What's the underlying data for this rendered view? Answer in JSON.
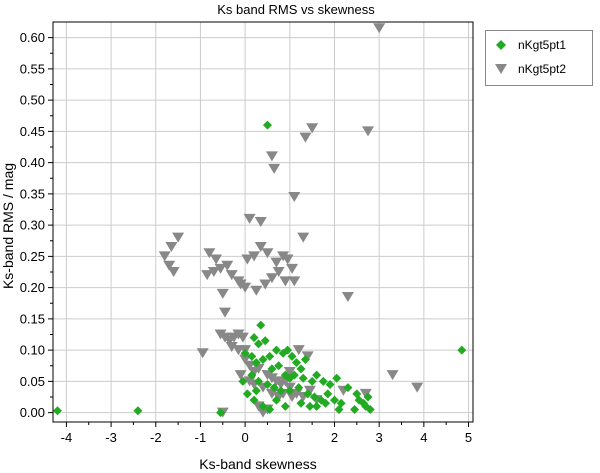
{
  "chart_data": {
    "type": "scatter",
    "title": "Ks band RMS vs skewness",
    "xlabel": "Ks-band skewness",
    "ylabel": "Ks-band RMS / mag",
    "xlim": [
      -4.3,
      5.1
    ],
    "ylim": [
      -0.015,
      0.625
    ],
    "xticks": [
      -4,
      -3,
      -2,
      -1,
      0,
      1,
      2,
      3,
      4,
      5
    ],
    "yticks": [
      0.0,
      0.05,
      0.1,
      0.15,
      0.2,
      0.25,
      0.3,
      0.35,
      0.4,
      0.45,
      0.5,
      0.55,
      0.6
    ],
    "ytick_labels": [
      "0.00",
      "0.05",
      "0.10",
      "0.15",
      "0.20",
      "0.25",
      "0.30",
      "0.35",
      "0.40",
      "0.45",
      "0.50",
      "0.55",
      "0.60"
    ],
    "grid": true,
    "legend": "outside-top-right",
    "series": [
      {
        "name": "nKgt5pt1",
        "marker": "diamond",
        "color": "#22aa22",
        "points": [
          [
            -4.2,
            0.003
          ],
          [
            -2.4,
            0.003
          ],
          [
            0.5,
            0.46
          ],
          [
            4.85,
            0.1
          ],
          [
            0.35,
            0.14
          ],
          [
            0.2,
            0.12
          ],
          [
            0.3,
            0.11
          ],
          [
            0.45,
            0.115
          ],
          [
            0.0,
            0.095
          ],
          [
            0.15,
            0.09
          ],
          [
            0.25,
            0.08
          ],
          [
            0.4,
            0.085
          ],
          [
            0.55,
            0.09
          ],
          [
            0.7,
            0.1
          ],
          [
            0.85,
            0.095
          ],
          [
            0.95,
            0.1
          ],
          [
            1.05,
            0.09
          ],
          [
            1.15,
            0.08
          ],
          [
            1.25,
            0.07
          ],
          [
            1.35,
            0.085
          ],
          [
            0.6,
            0.07
          ],
          [
            0.75,
            0.075
          ],
          [
            0.9,
            0.06
          ],
          [
            1.0,
            0.055
          ],
          [
            1.1,
            0.06
          ],
          [
            1.3,
            0.055
          ],
          [
            1.5,
            0.05
          ],
          [
            1.6,
            0.06
          ],
          [
            1.75,
            0.05
          ],
          [
            1.9,
            0.045
          ],
          [
            2.05,
            0.055
          ],
          [
            0.3,
            0.05
          ],
          [
            0.5,
            0.045
          ],
          [
            0.65,
            0.04
          ],
          [
            0.8,
            0.035
          ],
          [
            1.2,
            0.04
          ],
          [
            1.4,
            0.03
          ],
          [
            1.55,
            0.025
          ],
          [
            1.7,
            0.02
          ],
          [
            1.85,
            0.03
          ],
          [
            2.0,
            0.02
          ],
          [
            2.15,
            0.015
          ],
          [
            2.3,
            0.04
          ],
          [
            2.5,
            0.03
          ],
          [
            2.65,
            0.015
          ],
          [
            2.75,
            0.025
          ],
          [
            2.8,
            0.005
          ],
          [
            2.7,
            0.01
          ],
          [
            -0.05,
            0.05
          ],
          [
            0.05,
            0.03
          ],
          [
            0.2,
            0.02
          ],
          [
            0.4,
            0.01
          ],
          [
            0.55,
            0.005
          ],
          [
            0.7,
            0.02
          ],
          [
            1.6,
            0.01
          ],
          [
            2.1,
            0.005
          ],
          [
            2.45,
            0.005
          ],
          [
            2.55,
            0.02
          ],
          [
            1.25,
            0.015
          ],
          [
            1.45,
            0.01
          ],
          [
            0.9,
            0.01
          ],
          [
            -0.55,
            0.0
          ],
          [
            0.15,
            0.06
          ],
          [
            0.25,
            0.035
          ],
          [
            1.0,
            0.035
          ],
          [
            1.8,
            0.015
          ]
        ]
      },
      {
        "name": "nKgt5pt2",
        "marker": "triangle-down",
        "color": "#888888",
        "points": [
          [
            3.0,
            0.615
          ],
          [
            1.5,
            0.455
          ],
          [
            1.35,
            0.44
          ],
          [
            2.75,
            0.45
          ],
          [
            0.6,
            0.41
          ],
          [
            0.65,
            0.39
          ],
          [
            1.1,
            0.345
          ],
          [
            1.3,
            0.28
          ],
          [
            0.1,
            0.31
          ],
          [
            0.35,
            0.305
          ],
          [
            -1.5,
            0.28
          ],
          [
            -1.65,
            0.265
          ],
          [
            -1.8,
            0.25
          ],
          [
            -1.7,
            0.235
          ],
          [
            -1.6,
            0.225
          ],
          [
            -0.8,
            0.255
          ],
          [
            -0.65,
            0.245
          ],
          [
            -0.55,
            0.23
          ],
          [
            -0.7,
            0.225
          ],
          [
            -0.85,
            0.22
          ],
          [
            -0.4,
            0.235
          ],
          [
            -0.3,
            0.22
          ],
          [
            0.05,
            0.245
          ],
          [
            0.2,
            0.25
          ],
          [
            0.35,
            0.265
          ],
          [
            0.5,
            0.255
          ],
          [
            0.7,
            0.24
          ],
          [
            0.85,
            0.25
          ],
          [
            0.95,
            0.245
          ],
          [
            1.05,
            0.23
          ],
          [
            0.75,
            0.225
          ],
          [
            0.6,
            0.215
          ],
          [
            0.9,
            0.21
          ],
          [
            1.1,
            0.21
          ],
          [
            0.45,
            0.205
          ],
          [
            -0.1,
            0.205
          ],
          [
            0.0,
            0.2
          ],
          [
            -0.15,
            0.21
          ],
          [
            -0.5,
            0.19
          ],
          [
            0.25,
            0.195
          ],
          [
            2.3,
            0.185
          ],
          [
            -0.45,
            0.16
          ],
          [
            -0.55,
            0.125
          ],
          [
            -0.45,
            0.12
          ],
          [
            -0.35,
            0.115
          ],
          [
            -0.25,
            0.12
          ],
          [
            -0.15,
            0.125
          ],
          [
            -0.05,
            0.12
          ],
          [
            -0.3,
            0.105
          ],
          [
            -0.15,
            0.1
          ],
          [
            0.0,
            0.1
          ],
          [
            -0.95,
            0.095
          ],
          [
            0.0,
            0.085
          ],
          [
            0.1,
            0.075
          ],
          [
            0.2,
            0.065
          ],
          [
            0.3,
            0.07
          ],
          [
            0.5,
            0.06
          ],
          [
            0.6,
            0.055
          ],
          [
            0.7,
            0.05
          ],
          [
            0.8,
            0.045
          ],
          [
            0.9,
            0.05
          ],
          [
            1.0,
            0.04
          ],
          [
            0.4,
            0.04
          ],
          [
            0.2,
            0.045
          ],
          [
            0.1,
            0.05
          ],
          [
            -0.1,
            0.06
          ],
          [
            0.6,
            0.03
          ],
          [
            0.75,
            0.025
          ],
          [
            0.85,
            0.03
          ],
          [
            1.05,
            0.025
          ],
          [
            1.15,
            0.03
          ],
          [
            1.3,
            0.025
          ],
          [
            1.45,
            0.035
          ],
          [
            1.6,
            0.02
          ],
          [
            0.3,
            0.01
          ],
          [
            0.4,
            0.0
          ],
          [
            0.5,
            0.005
          ],
          [
            -0.5,
            0.0
          ],
          [
            3.3,
            0.06
          ],
          [
            3.85,
            0.04
          ],
          [
            2.7,
            0.03
          ],
          [
            2.2,
            0.035
          ],
          [
            1.2,
            0.1
          ],
          [
            1.4,
            0.09
          ],
          [
            1.0,
            0.065
          ]
        ]
      }
    ]
  }
}
